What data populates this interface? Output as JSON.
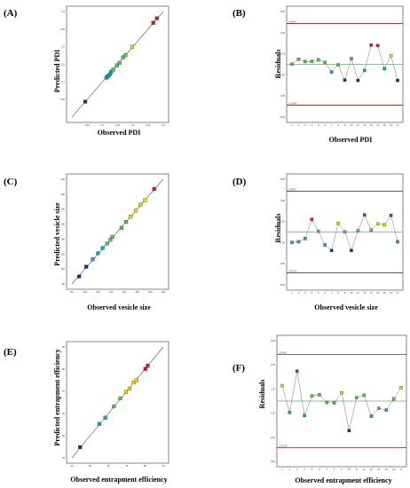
{
  "figure": {
    "colors": {
      "frame": "#333333",
      "fit_line": "#555555",
      "zero_line": "#2e7d32",
      "limit_line": "#a01818",
      "residual_line": "#777777",
      "low": "#1a2a8c",
      "mid_low": "#1aa6b0",
      "mid": "#55c050",
      "mid_high": "#f0d400",
      "high": "#d01f1f"
    }
  },
  "chart_data": [
    {
      "panel": "(A)",
      "type": "scatter",
      "xlabel": "Observed PDI",
      "ylabel": "Predicted PDI",
      "xlim": [
        0,
        0.3
      ],
      "ylim": [
        0,
        0.3
      ],
      "x_ticks": [
        "0.05",
        "0.1",
        "0.15",
        "0.2",
        "0.25",
        "0.3"
      ],
      "y_ticks": [
        "0.05",
        "0.1",
        "0.15",
        "0.2",
        "0.25",
        "0.3"
      ],
      "reference_line": "y = x",
      "points": [
        {
          "x": 0.044,
          "y": 0.044
        },
        {
          "x": 0.113,
          "y": 0.112
        },
        {
          "x": 0.117,
          "y": 0.115
        },
        {
          "x": 0.121,
          "y": 0.118
        },
        {
          "x": 0.125,
          "y": 0.122
        },
        {
          "x": 0.129,
          "y": 0.129
        },
        {
          "x": 0.136,
          "y": 0.135
        },
        {
          "x": 0.148,
          "y": 0.147
        },
        {
          "x": 0.156,
          "y": 0.154
        },
        {
          "x": 0.168,
          "y": 0.17
        },
        {
          "x": 0.176,
          "y": 0.176
        },
        {
          "x": 0.198,
          "y": 0.2
        },
        {
          "x": 0.267,
          "y": 0.268
        },
        {
          "x": 0.279,
          "y": 0.281
        }
      ]
    },
    {
      "panel": "(B)",
      "type": "line",
      "xlabel": "Observed PDI",
      "ylabel": "Residuals",
      "xlim": [
        1,
        17
      ],
      "ylim": [
        -5,
        5
      ],
      "x_ticks": [
        "1",
        "2",
        "3",
        "4",
        "5",
        "6",
        "7",
        "8",
        "9",
        "10",
        "11",
        "12",
        "13",
        "14",
        "15",
        "16",
        "17"
      ],
      "y_ticks": [
        "-5.00",
        "-3.00",
        "-1.00",
        "1.00",
        "3.00",
        "5.00"
      ],
      "limit_labels": [
        "3.87043",
        "-3.87043"
      ],
      "limits": [
        3.87043,
        -3.87043
      ],
      "x": [
        1,
        2,
        3,
        4,
        5,
        6,
        7,
        8,
        9,
        10,
        11,
        12,
        13,
        14,
        15,
        16,
        17
      ],
      "values": [
        0.02,
        0.48,
        0.26,
        0.28,
        0.42,
        0.18,
        -0.72,
        -0.05,
        -1.5,
        0.55,
        -1.52,
        -0.58,
        1.82,
        1.78,
        -0.42,
        0.82,
        -1.52
      ]
    },
    {
      "panel": "(C)",
      "type": "scatter",
      "xlabel": "Observed vesicle size",
      "ylabel": "Predicted vesicle size",
      "xlim": [
        80,
        220
      ],
      "ylim": [
        80,
        220
      ],
      "x_ticks": [
        "80",
        "100",
        "120",
        "140",
        "160",
        "180",
        "200",
        "220"
      ],
      "y_ticks": [
        "80",
        "100",
        "120",
        "140",
        "160",
        "180",
        "200",
        "220"
      ],
      "reference_line": "y = x",
      "points": [
        {
          "x": 91,
          "y": 90
        },
        {
          "x": 102,
          "y": 103
        },
        {
          "x": 112,
          "y": 113
        },
        {
          "x": 120,
          "y": 121
        },
        {
          "x": 127,
          "y": 128
        },
        {
          "x": 134,
          "y": 134
        },
        {
          "x": 139,
          "y": 139
        },
        {
          "x": 142,
          "y": 143
        },
        {
          "x": 156,
          "y": 155
        },
        {
          "x": 163,
          "y": 163
        },
        {
          "x": 170,
          "y": 170
        },
        {
          "x": 178,
          "y": 178
        },
        {
          "x": 185,
          "y": 186
        },
        {
          "x": 192,
          "y": 192
        },
        {
          "x": 206,
          "y": 207
        }
      ]
    },
    {
      "panel": "(D)",
      "type": "line",
      "xlabel": "Observed vesicle size",
      "ylabel": "Residuals",
      "xlim": [
        1,
        17
      ],
      "ylim": [
        -5,
        5
      ],
      "x_ticks": [
        "1",
        "2",
        "3",
        "4",
        "5",
        "6",
        "7",
        "8",
        "9",
        "10",
        "11",
        "12",
        "13",
        "14",
        "15",
        "16",
        "17"
      ],
      "y_ticks": [
        "-5.00",
        "-3.00",
        "-1.00",
        "1.00",
        "3.00",
        "5.00"
      ],
      "limit_labels": [
        "3.87043",
        "-3.87043"
      ],
      "limits": [
        3.87043,
        -3.87043
      ],
      "x": [
        1,
        2,
        3,
        4,
        5,
        6,
        7,
        8,
        9,
        10,
        11,
        12,
        13,
        14,
        15,
        16,
        17
      ],
      "values": [
        -0.98,
        -0.92,
        -0.62,
        1.2,
        0.08,
        -1.22,
        -1.75,
        0.82,
        0.02,
        -1.75,
        0.12,
        1.62,
        0.18,
        0.78,
        0.68,
        1.58,
        -0.92
      ]
    },
    {
      "panel": "(E)",
      "type": "scatter",
      "xlabel": "Observed entrapment efficiency",
      "ylabel": "Predicted entrapment efficiency",
      "xlim": [
        40,
        90
      ],
      "ylim": [
        40,
        90
      ],
      "x_ticks": [
        "40",
        "50",
        "60",
        "70",
        "80",
        "90"
      ],
      "y_ticks": [
        "40",
        "50",
        "60",
        "70",
        "80",
        "90"
      ],
      "reference_line": "y = x",
      "points": [
        {
          "x": 44.5,
          "y": 44.8
        },
        {
          "x": 55.0,
          "y": 55.3
        },
        {
          "x": 58.3,
          "y": 58.1
        },
        {
          "x": 63.0,
          "y": 63.2
        },
        {
          "x": 66.5,
          "y": 66.8
        },
        {
          "x": 69.6,
          "y": 69.7
        },
        {
          "x": 71.5,
          "y": 71.2
        },
        {
          "x": 73.8,
          "y": 74.0
        },
        {
          "x": 75.3,
          "y": 74.9
        },
        {
          "x": 80.2,
          "y": 80.1
        },
        {
          "x": 81.5,
          "y": 81.5
        }
      ]
    },
    {
      "panel": "(F)",
      "type": "line",
      "xlabel": "Observed entrapment efficiency",
      "ylabel": "Residuals",
      "xlim": [
        1,
        17
      ],
      "ylim": [
        -5,
        5
      ],
      "x_ticks": [
        "1",
        "2",
        "3",
        "4",
        "5",
        "6",
        "7",
        "8",
        "9",
        "10",
        "11",
        "12",
        "13",
        "14",
        "15",
        "16",
        "17"
      ],
      "y_ticks": [
        "-5.00",
        "-3.00",
        "-1.00",
        "1.00",
        "3.00",
        "5.00"
      ],
      "limit_labels": [
        "3.87043",
        "-3.87043"
      ],
      "limits": [
        3.87043,
        -3.87043
      ],
      "x": [
        1,
        2,
        3,
        4,
        5,
        6,
        7,
        8,
        9,
        10,
        11,
        12,
        13,
        14,
        15,
        16,
        17
      ],
      "values": [
        1.28,
        -0.95,
        2.48,
        -1.2,
        0.42,
        0.52,
        -0.12,
        -0.15,
        0.68,
        -2.45,
        0.28,
        0.48,
        -1.25,
        -0.6,
        -0.75,
        0.18,
        1.12
      ]
    }
  ]
}
